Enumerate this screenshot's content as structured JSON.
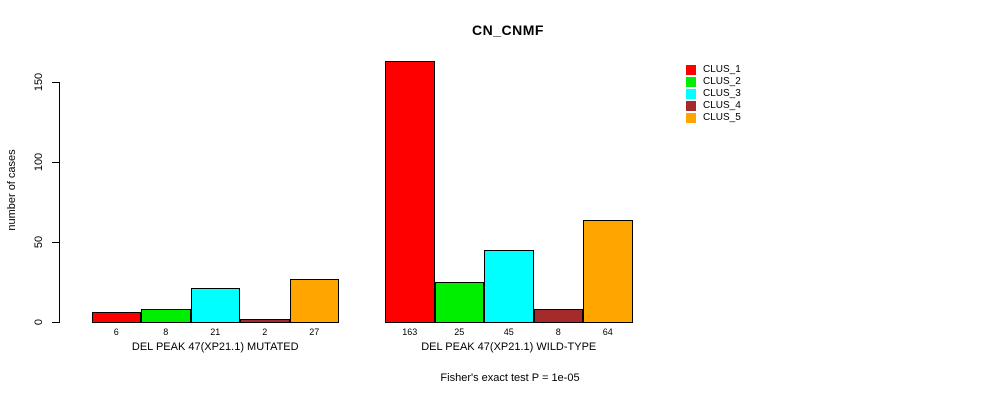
{
  "chart_data": {
    "type": "bar",
    "title": "CN_CNMF",
    "ylabel": "number of cases",
    "xlabel": "",
    "categories": [
      "DEL PEAK 47(XP21.1) MUTATED",
      "DEL PEAK 47(XP21.1) WILD-TYPE"
    ],
    "series": [
      {
        "name": "CLUS_1",
        "color": "#ff0000",
        "values": [
          6,
          163
        ]
      },
      {
        "name": "CLUS_2",
        "color": "#00ee00",
        "values": [
          8,
          25
        ]
      },
      {
        "name": "CLUS_3",
        "color": "#00ffff",
        "values": [
          21,
          45
        ]
      },
      {
        "name": "CLUS_4",
        "color": "#a52a2a",
        "values": [
          2,
          8
        ]
      },
      {
        "name": "CLUS_5",
        "color": "#ffa500",
        "values": [
          27,
          64
        ]
      }
    ],
    "yticks": [
      0,
      50,
      100,
      150
    ],
    "ylim": [
      0,
      165
    ],
    "grid": false,
    "legend_position": "top-right",
    "value_labels_shown": true,
    "footnote": "Fisher's exact test P = 1e-05"
  }
}
